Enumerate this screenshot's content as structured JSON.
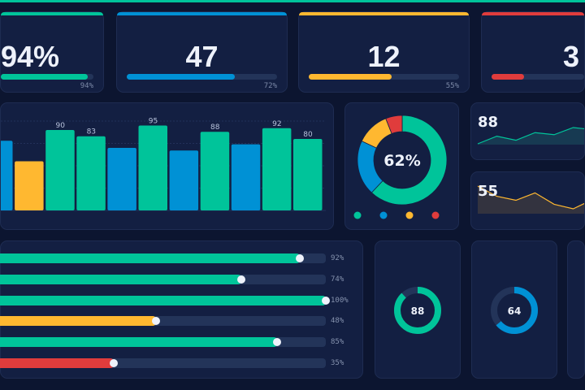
{
  "colors": {
    "green": "#00c49a",
    "blue": "#0091d5",
    "yellow": "#ffb830",
    "red": "#e03c3c",
    "track": "#233459"
  },
  "kpis": [
    {
      "value": "94%",
      "progress": 94,
      "label": "94%",
      "color": "#00c49a"
    },
    {
      "value": "47",
      "progress": 72,
      "label": "72%",
      "color": "#0091d5"
    },
    {
      "value": "12",
      "progress": 55,
      "label": "55%",
      "color": "#ffb830"
    },
    {
      "value": "3",
      "progress": 35,
      "label": "",
      "color": "#e03c3c"
    }
  ],
  "chart_data": [
    {
      "type": "bar",
      "ylim": [
        0,
        100
      ],
      "grid": true,
      "values": [
        78,
        55,
        90,
        83,
        70,
        95,
        67,
        88,
        74,
        92,
        80
      ],
      "colors": [
        "#0091d5",
        "#ffb830",
        "#00c49a",
        "#00c49a",
        "#0091d5",
        "#00c49a",
        "#0091d5",
        "#00c49a",
        "#0091d5",
        "#00c49a",
        "#00c49a"
      ],
      "data_labels": [
        "",
        "",
        "90",
        "83",
        "",
        "95",
        "",
        "88",
        "",
        "92",
        "80"
      ]
    },
    {
      "type": "pie",
      "center_label": "62%",
      "values": [
        62,
        20,
        12,
        6
      ],
      "colors": [
        "#00c49a",
        "#0091d5",
        "#ffb830",
        "#e03c3c"
      ]
    },
    {
      "type": "area",
      "value_label": "88",
      "values": [
        40,
        55,
        47,
        62,
        58,
        72,
        68
      ],
      "color": "#00c49a"
    },
    {
      "type": "area",
      "value_label": "55",
      "values": [
        70,
        52,
        45,
        58,
        38,
        30,
        46
      ],
      "color": "#ffb830"
    }
  ],
  "progress_rows": [
    {
      "value": 92,
      "label": "92%",
      "color": "#00c49a"
    },
    {
      "value": 74,
      "label": "74%",
      "color": "#00c49a"
    },
    {
      "value": 100,
      "label": "100%",
      "color": "#00c49a"
    },
    {
      "value": 48,
      "label": "48%",
      "color": "#ffb830"
    },
    {
      "value": 85,
      "label": "85%",
      "color": "#00c49a"
    },
    {
      "value": 35,
      "label": "35%",
      "color": "#e03c3c"
    }
  ],
  "gauges": [
    {
      "value": 88,
      "label": "88",
      "color": "#00c49a"
    },
    {
      "value": 64,
      "label": "64",
      "color": "#0091d5"
    }
  ]
}
